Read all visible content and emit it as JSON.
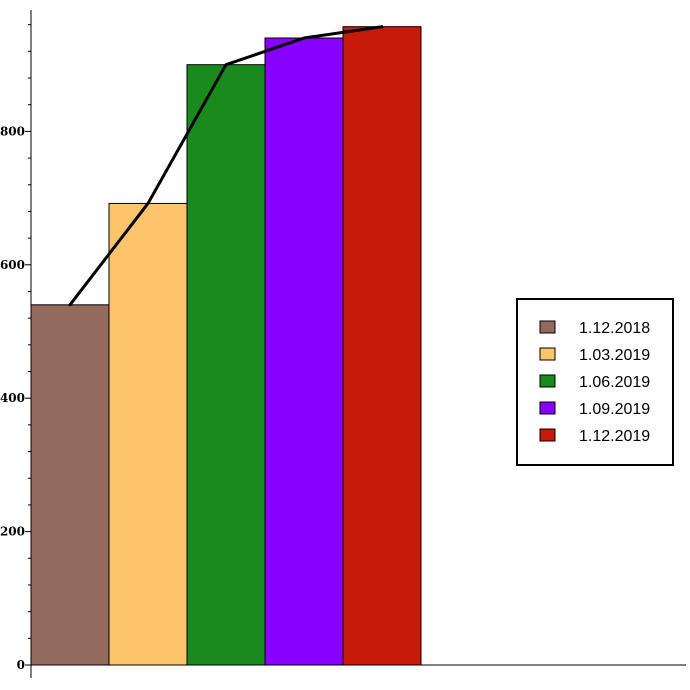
{
  "chart_data": {
    "type": "bar",
    "categories": [
      "1.12.2018",
      "1.03.2019",
      "1.06.2019",
      "1.09.2019",
      "1.12.2019"
    ],
    "values": [
      540,
      692,
      900,
      940,
      957
    ],
    "line_values": [
      540,
      692,
      900,
      940,
      957
    ],
    "bar_colors": [
      "#926b5c",
      "#fec46c",
      "#1a8a1f",
      "#8800ff",
      "#c81a0a"
    ],
    "line_color": "#000000",
    "title": "",
    "xlabel": "",
    "ylabel": "",
    "ylim": [
      0,
      980
    ],
    "y_ticks": [
      0,
      200,
      400,
      600,
      800
    ],
    "y_tick_labels": [
      "0",
      "200",
      "400",
      "600",
      "800"
    ],
    "grid": false,
    "legend": {
      "placement": "right",
      "entries": [
        "1.12.2018",
        "1.03.2019",
        "1.06.2019",
        "1.09.2019",
        "1.12.2019"
      ]
    }
  }
}
